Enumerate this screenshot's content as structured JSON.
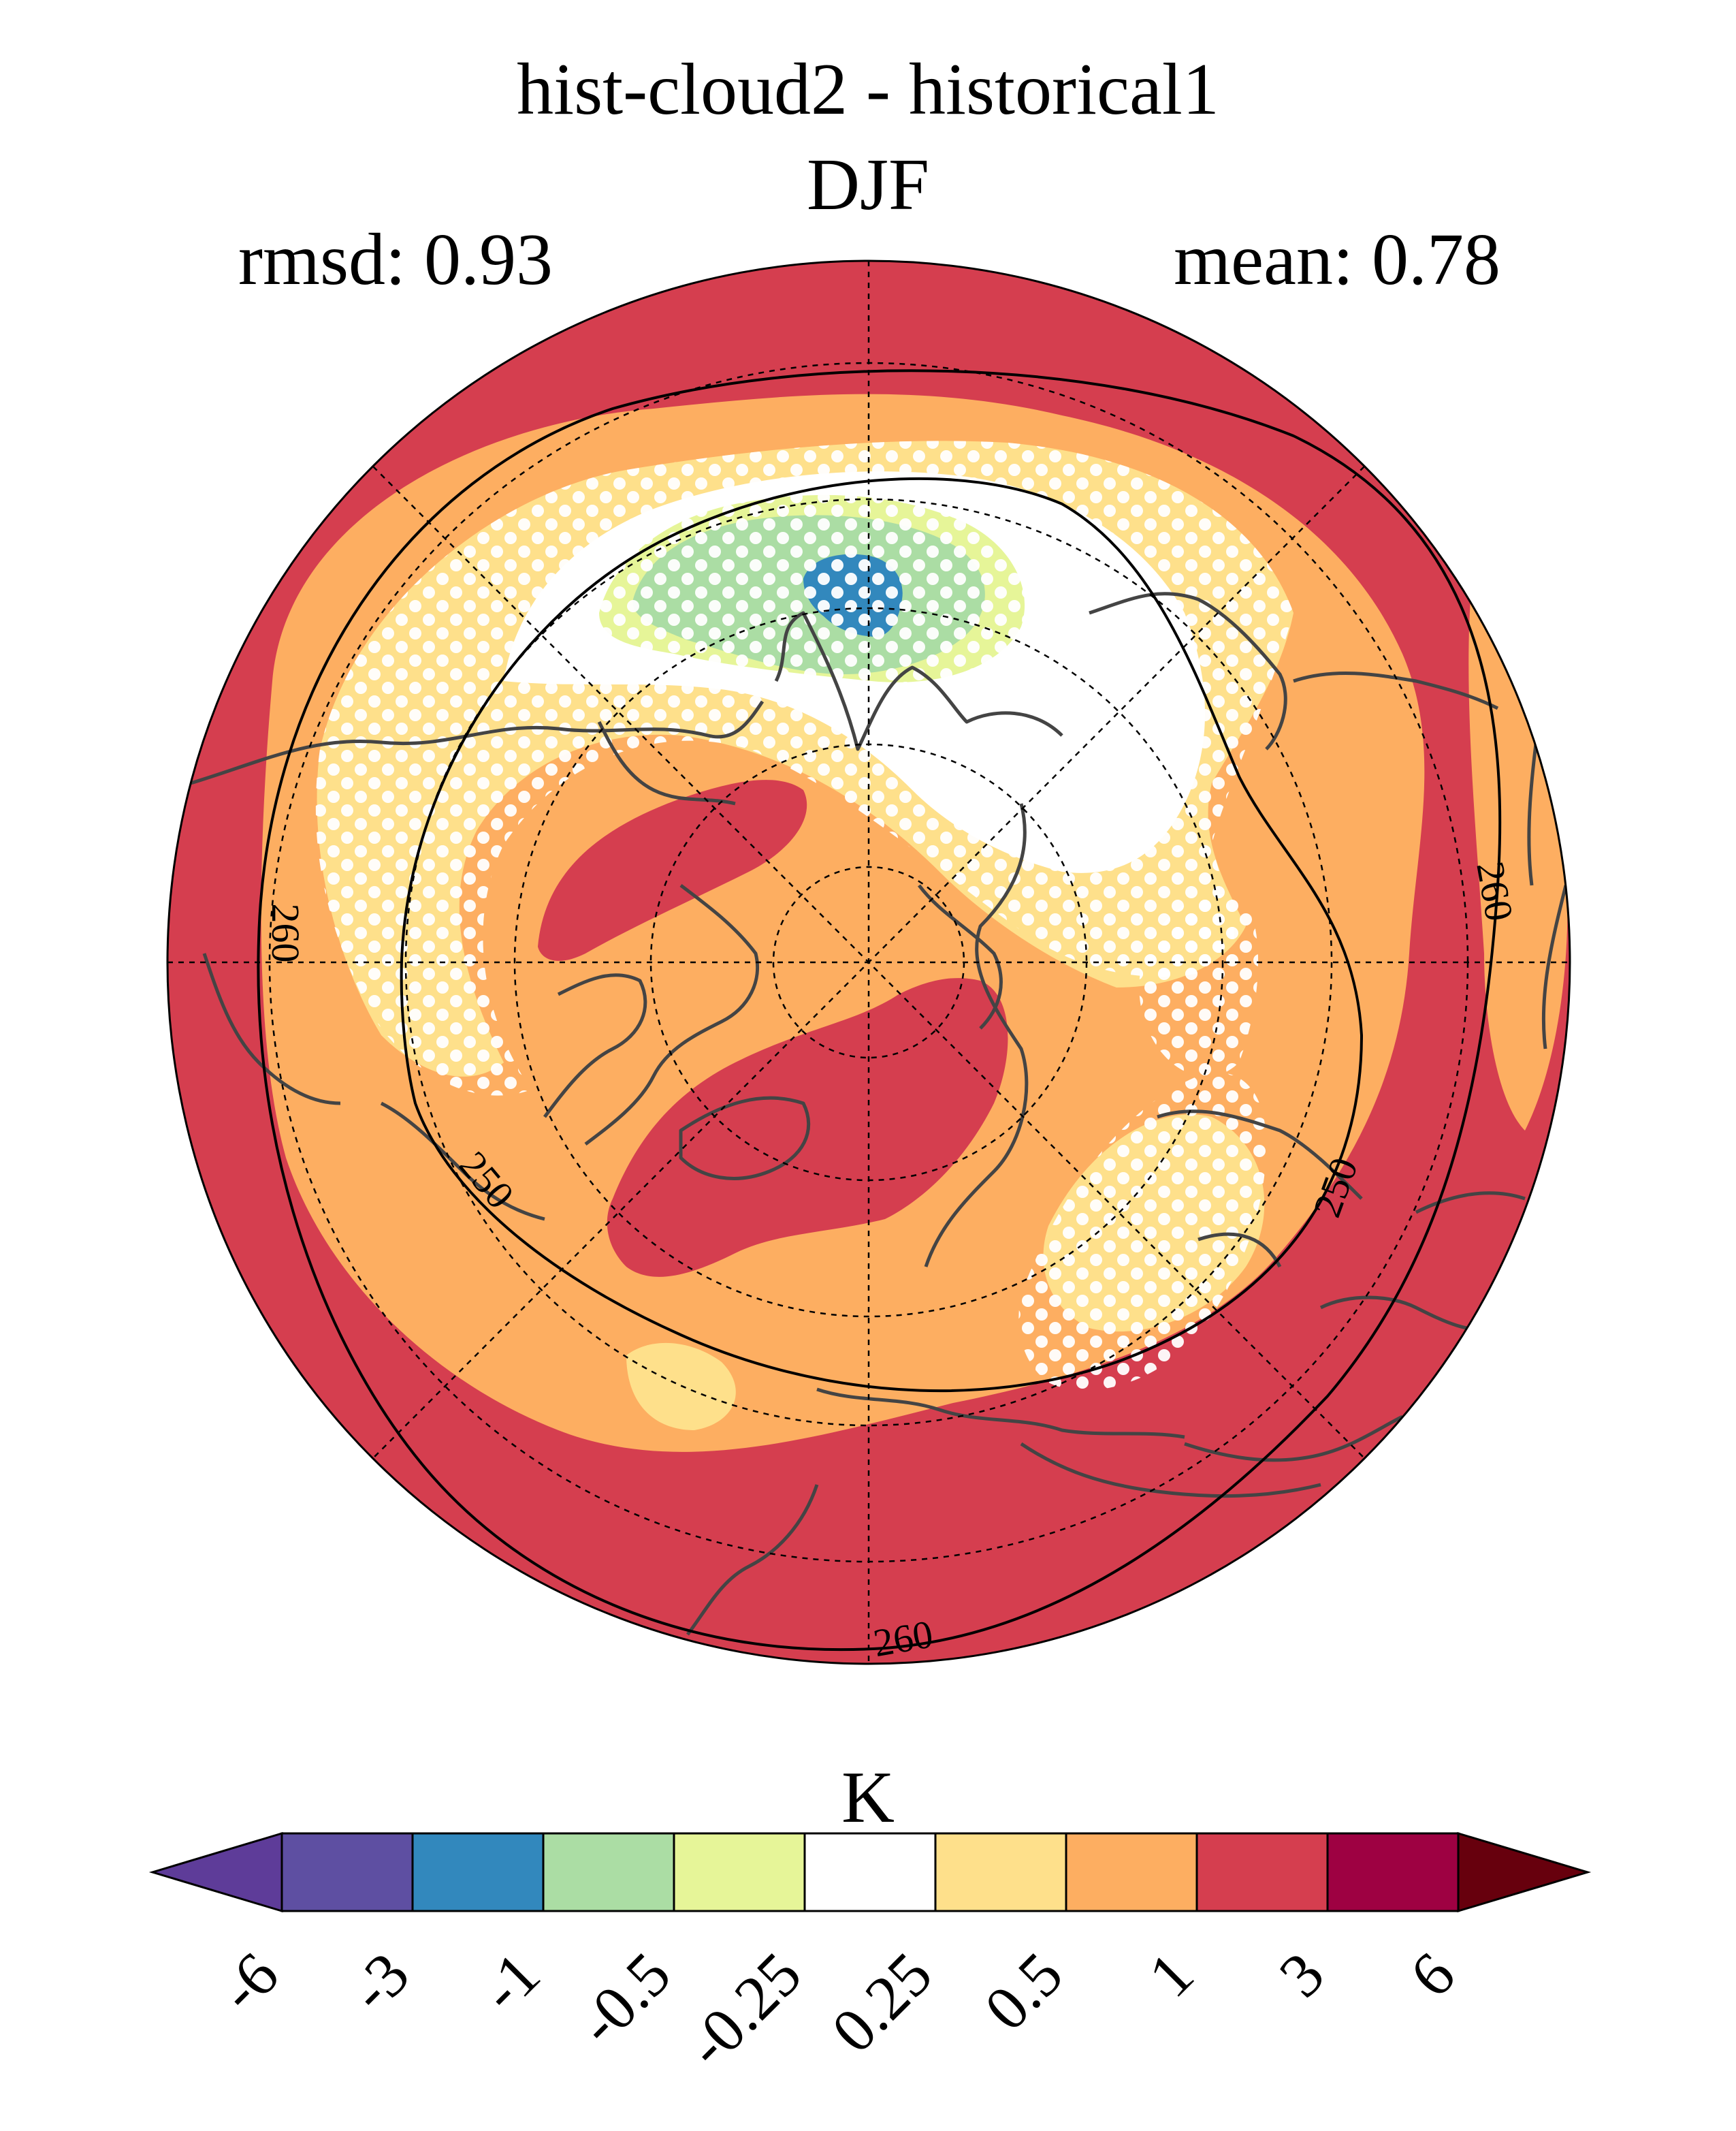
{
  "title": "hist-cloud2 - historical1",
  "season": "DJF",
  "rmsd_label": "rmsd: 0.93",
  "mean_label": "mean: 0.78",
  "colorbar": {
    "units": "K",
    "ticks": [
      "-6",
      "-3",
      "-1",
      "-0.5",
      "-0.25",
      "0.25",
      "0.5",
      "1",
      "3",
      "6"
    ],
    "colors": [
      "#5e3c99",
      "#5e4fa2",
      "#3288bd",
      "#abdda4",
      "#e6f598",
      "#ffffff",
      "#fee08b",
      "#fdae61",
      "#d53e4f",
      "#9e0142",
      "#67000d"
    ]
  },
  "map": {
    "projection": "north-polar-stereographic",
    "contour_labels": [
      "260",
      "260",
      "250",
      "250",
      "260"
    ],
    "colors": {
      "strong_warm": "#d53e4f",
      "warm": "#fdae61",
      "mild_warm": "#fee08b",
      "neutral": "#ffffff",
      "mild_cool": "#e6f598",
      "cool": "#abdda4",
      "cold": "#3288bd",
      "coast": "#444444",
      "stipple": "#ffffff"
    }
  }
}
